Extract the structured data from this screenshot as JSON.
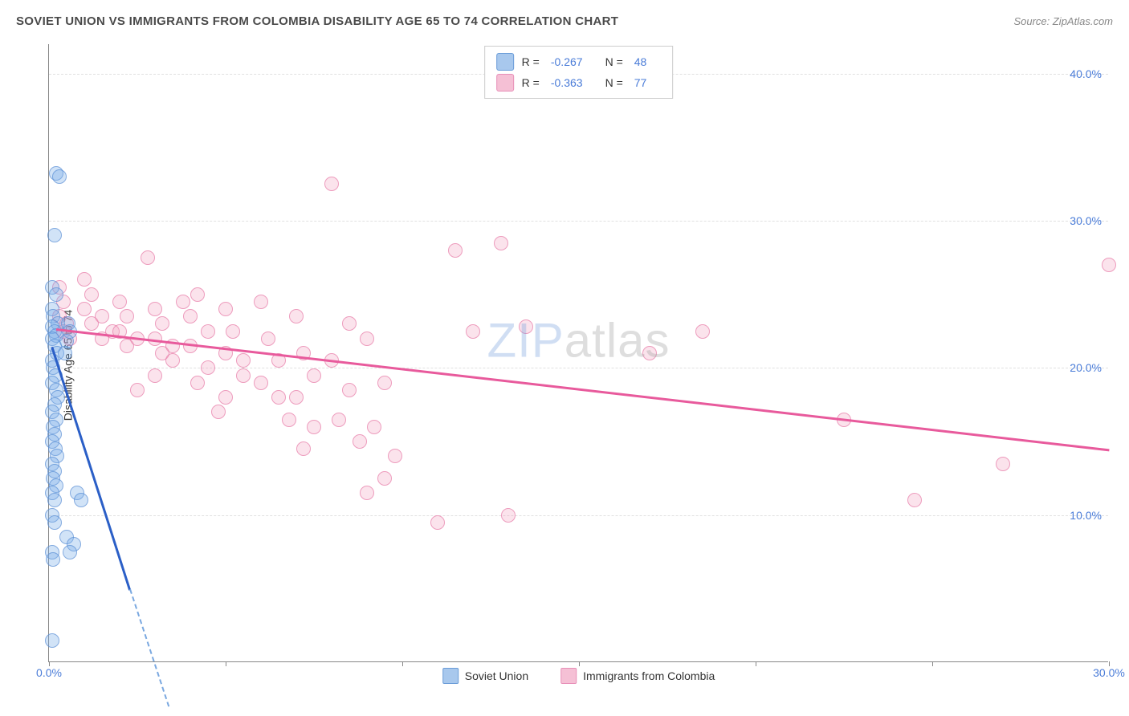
{
  "header": {
    "title": "SOVIET UNION VS IMMIGRANTS FROM COLOMBIA DISABILITY AGE 65 TO 74 CORRELATION CHART",
    "source": "Source: ZipAtlas.com"
  },
  "chart": {
    "type": "scatter",
    "ylabel": "Disability Age 65 to 74",
    "watermark_a": "ZIP",
    "watermark_b": "atlas",
    "background_color": "#ffffff",
    "grid_color": "#e0e0e0",
    "axis_color": "#888888",
    "tick_color": "#4a7cd8",
    "xlim": [
      0,
      30
    ],
    "ylim": [
      0,
      42
    ],
    "xticks": [
      0,
      5,
      10,
      15,
      20,
      25,
      30
    ],
    "xtick_labels": [
      "0.0%",
      "",
      "",
      "",
      "",
      "",
      "30.0%"
    ],
    "yticks": [
      10,
      20,
      30,
      40
    ],
    "ytick_labels": [
      "10.0%",
      "20.0%",
      "30.0%",
      "40.0%"
    ],
    "point_radius": 9,
    "series": {
      "blue": {
        "label": "Soviet Union",
        "fill": "rgba(120,170,230,0.45)",
        "stroke": "#5a8fd6",
        "R": "-0.267",
        "N": "48",
        "trend": {
          "x1": 0.1,
          "y1": 21.5,
          "x2": 2.3,
          "y2": 5.0,
          "extend_x": 3.4,
          "extend_y": -3.0,
          "color_solid": "#2b5fc7",
          "color_dash": "#7aa8e0"
        },
        "points": [
          [
            0.2,
            33.2
          ],
          [
            0.3,
            33.0
          ],
          [
            0.15,
            29.0
          ],
          [
            0.1,
            25.5
          ],
          [
            0.2,
            25.0
          ],
          [
            0.1,
            24.0
          ],
          [
            0.12,
            23.5
          ],
          [
            0.25,
            23.0
          ],
          [
            0.1,
            22.8
          ],
          [
            0.15,
            22.5
          ],
          [
            0.2,
            22.2
          ],
          [
            0.1,
            22.0
          ],
          [
            0.15,
            21.5
          ],
          [
            0.22,
            21.0
          ],
          [
            0.1,
            20.5
          ],
          [
            0.12,
            20.0
          ],
          [
            0.18,
            19.5
          ],
          [
            0.1,
            19.0
          ],
          [
            0.2,
            18.5
          ],
          [
            0.25,
            18.0
          ],
          [
            0.15,
            17.5
          ],
          [
            0.1,
            17.0
          ],
          [
            0.2,
            16.5
          ],
          [
            0.12,
            16.0
          ],
          [
            0.15,
            15.5
          ],
          [
            0.1,
            15.0
          ],
          [
            0.18,
            14.5
          ],
          [
            0.22,
            14.0
          ],
          [
            0.1,
            13.5
          ],
          [
            0.15,
            13.0
          ],
          [
            0.12,
            12.5
          ],
          [
            0.2,
            12.0
          ],
          [
            0.1,
            11.5
          ],
          [
            0.15,
            11.0
          ],
          [
            0.8,
            11.5
          ],
          [
            0.9,
            11.0
          ],
          [
            0.1,
            10.0
          ],
          [
            0.15,
            9.5
          ],
          [
            0.5,
            8.5
          ],
          [
            0.7,
            8.0
          ],
          [
            0.6,
            7.5
          ],
          [
            0.1,
            7.5
          ],
          [
            0.12,
            7.0
          ],
          [
            0.1,
            1.5
          ],
          [
            0.55,
            23.0
          ],
          [
            0.6,
            22.5
          ],
          [
            0.5,
            21.8
          ],
          [
            0.45,
            21.0
          ]
        ]
      },
      "pink": {
        "label": "Immigrants from Colombia",
        "fill": "rgba(240,160,190,0.4)",
        "stroke": "#e87ba8",
        "R": "-0.363",
        "N": "77",
        "trend": {
          "x1": 0.2,
          "y1": 22.7,
          "x2": 30.0,
          "y2": 14.5,
          "color": "#e85a9c"
        },
        "points": [
          [
            0.3,
            25.5
          ],
          [
            0.4,
            24.5
          ],
          [
            0.3,
            23.5
          ],
          [
            0.5,
            23.0
          ],
          [
            0.4,
            22.5
          ],
          [
            0.6,
            22.0
          ],
          [
            1.0,
            26.0
          ],
          [
            1.2,
            25.0
          ],
          [
            1.0,
            24.0
          ],
          [
            1.5,
            23.5
          ],
          [
            1.2,
            23.0
          ],
          [
            1.8,
            22.5
          ],
          [
            1.5,
            22.0
          ],
          [
            2.0,
            24.5
          ],
          [
            2.2,
            23.5
          ],
          [
            2.0,
            22.5
          ],
          [
            2.5,
            22.0
          ],
          [
            2.2,
            21.5
          ],
          [
            2.8,
            27.5
          ],
          [
            3.0,
            24.0
          ],
          [
            3.2,
            23.0
          ],
          [
            3.0,
            22.0
          ],
          [
            3.5,
            21.5
          ],
          [
            3.2,
            21.0
          ],
          [
            2.5,
            18.5
          ],
          [
            3.0,
            19.5
          ],
          [
            3.5,
            20.5
          ],
          [
            4.0,
            23.5
          ],
          [
            4.2,
            25.0
          ],
          [
            4.5,
            22.5
          ],
          [
            4.0,
            21.5
          ],
          [
            4.5,
            20.0
          ],
          [
            4.2,
            19.0
          ],
          [
            5.0,
            24.0
          ],
          [
            5.2,
            22.5
          ],
          [
            5.0,
            21.0
          ],
          [
            5.5,
            20.5
          ],
          [
            5.5,
            19.5
          ],
          [
            5.0,
            18.0
          ],
          [
            6.0,
            24.5
          ],
          [
            6.2,
            22.0
          ],
          [
            6.5,
            20.5
          ],
          [
            6.0,
            19.0
          ],
          [
            6.5,
            18.0
          ],
          [
            6.8,
            16.5
          ],
          [
            7.0,
            23.5
          ],
          [
            7.2,
            21.0
          ],
          [
            7.5,
            19.5
          ],
          [
            7.0,
            18.0
          ],
          [
            7.5,
            16.0
          ],
          [
            7.2,
            14.5
          ],
          [
            8.0,
            32.5
          ],
          [
            8.5,
            23.0
          ],
          [
            8.0,
            20.5
          ],
          [
            8.5,
            18.5
          ],
          [
            8.2,
            16.5
          ],
          [
            8.8,
            15.0
          ],
          [
            9.0,
            22.0
          ],
          [
            9.5,
            19.0
          ],
          [
            9.2,
            16.0
          ],
          [
            9.8,
            14.0
          ],
          [
            9.5,
            12.5
          ],
          [
            9.0,
            11.5
          ],
          [
            11.5,
            28.0
          ],
          [
            12.8,
            28.5
          ],
          [
            12.0,
            22.5
          ],
          [
            13.5,
            22.8
          ],
          [
            11.0,
            9.5
          ],
          [
            13.0,
            10.0
          ],
          [
            18.5,
            22.5
          ],
          [
            17.0,
            21.0
          ],
          [
            22.5,
            16.5
          ],
          [
            24.5,
            11.0
          ],
          [
            27.0,
            13.5
          ],
          [
            30.0,
            27.0
          ],
          [
            3.8,
            24.5
          ],
          [
            4.8,
            17.0
          ]
        ]
      }
    },
    "legend_top": {
      "r_label": "R =",
      "n_label": "N ="
    }
  }
}
